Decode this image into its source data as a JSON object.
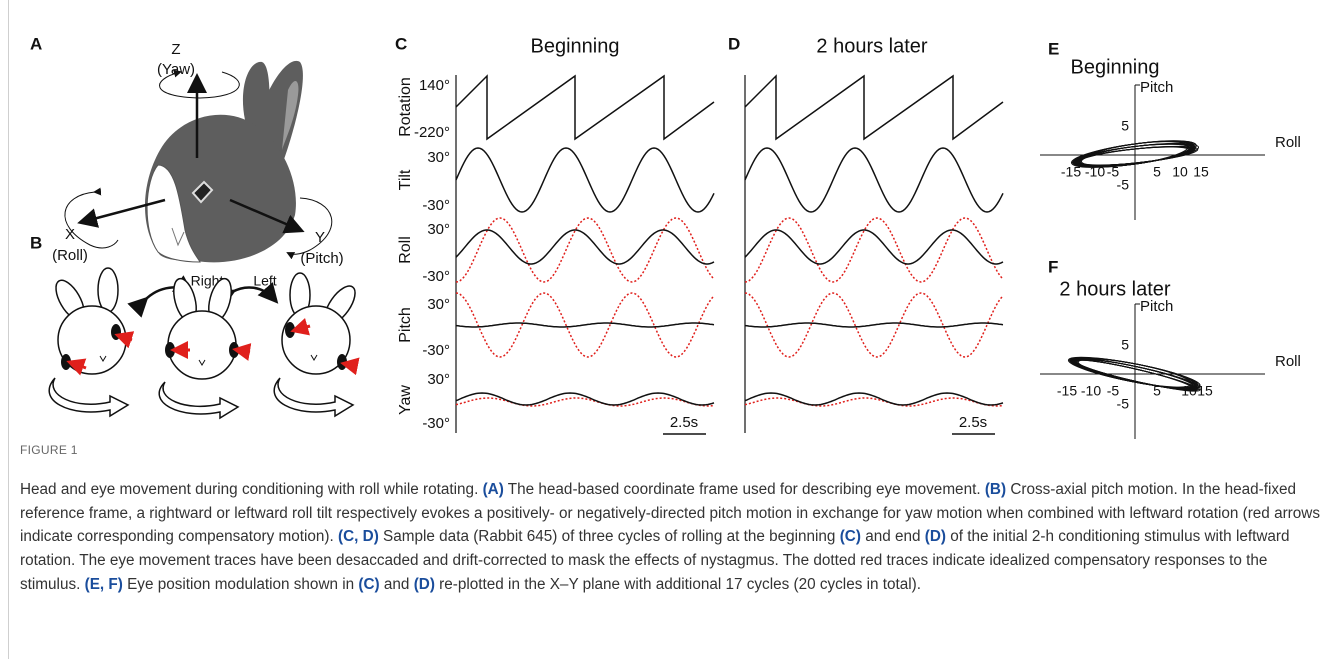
{
  "figure": {
    "panel_a": {
      "label": "A",
      "z": "Z",
      "yaw": "(Yaw)",
      "x": "X",
      "roll": "(Roll)",
      "y": "Y",
      "pitch": "(Pitch)"
    },
    "panel_b": {
      "label": "B",
      "right": "Right",
      "left": "Left"
    },
    "panel_c": {
      "label": "C",
      "title": "Beginning",
      "scale_bar": "2.5s"
    },
    "panel_d": {
      "label": "D",
      "title": "2 hours later",
      "scale_bar": "2.5s"
    },
    "trace_rows": [
      {
        "name": "Rotation",
        "ticks": [
          "140°",
          "-220°"
        ]
      },
      {
        "name": "Tilt",
        "ticks": [
          "30°",
          "-30°"
        ]
      },
      {
        "name": "Roll",
        "ticks": [
          "30°",
          "-30°"
        ]
      },
      {
        "name": "Pitch",
        "ticks": [
          "30°",
          "-30°"
        ]
      },
      {
        "name": "Yaw",
        "ticks": [
          "30°",
          "-30°"
        ]
      }
    ],
    "panel_e": {
      "label": "E",
      "title": "Beginning",
      "y_axis": "Pitch",
      "x_axis": "Roll",
      "yticks": [
        "5",
        "-5"
      ],
      "xticks": [
        "-15",
        "-10",
        "-5",
        "5",
        "10",
        "15"
      ]
    },
    "panel_f": {
      "label": "F",
      "title": "2 hours later",
      "y_axis": "Pitch",
      "x_axis": "Roll",
      "yticks": [
        "5",
        "-5"
      ],
      "xticks": [
        "-15",
        "-10",
        "-5",
        "5",
        "10",
        "15"
      ]
    }
  },
  "caption": {
    "label": "FIGURE 1",
    "runs": [
      {
        "text": "Head and eye movement during conditioning with roll while rotating. ",
        "bold": false
      },
      {
        "text": "(A)",
        "bold": true
      },
      {
        "text": " The head-based coordinate frame used for describing eye movement. ",
        "bold": false
      },
      {
        "text": "(B)",
        "bold": true
      },
      {
        "text": " Cross-axial pitch motion. In the head-fixed reference frame, a rightward or leftward roll tilt respectively evokes a positively- or negatively-directed pitch motion in exchange for yaw motion when combined with leftward rotation (red arrows indicate corresponding compensatory motion). ",
        "bold": false
      },
      {
        "text": "(C, D)",
        "bold": true
      },
      {
        "text": " Sample data (Rabbit 645) of three cycles of rolling at the beginning ",
        "bold": false
      },
      {
        "text": "(C)",
        "bold": true
      },
      {
        "text": " and end ",
        "bold": false
      },
      {
        "text": "(D)",
        "bold": true
      },
      {
        "text": " of the initial 2-h conditioning stimulus with leftward rotation. The eye movement traces have been desaccaded and drift-corrected to mask the effects of nystagmus. The dotted red traces indicate idealized compensatory responses to the stimulus. ",
        "bold": false
      },
      {
        "text": "(E, F)",
        "bold": true
      },
      {
        "text": " Eye position modulation shown in ",
        "bold": false
      },
      {
        "text": "(C)",
        "bold": true
      },
      {
        "text": " and ",
        "bold": false
      },
      {
        "text": "(D)",
        "bold": true
      },
      {
        "text": " re-plotted in the X–Y plane with additional 17 cycles (20 cycles in total).",
        "bold": false
      }
    ]
  }
}
